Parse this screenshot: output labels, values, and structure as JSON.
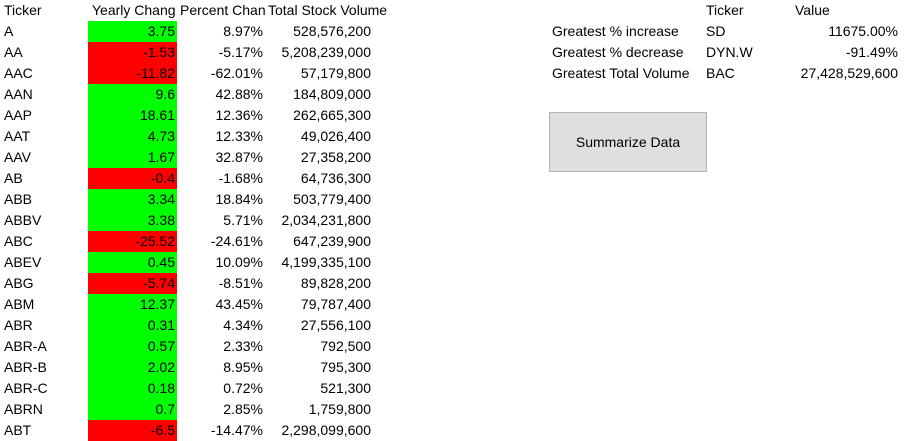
{
  "table": {
    "headers": {
      "ticker": "Ticker",
      "yearly_change": "Yearly Chang",
      "percent_change": "Percent Chan",
      "total_volume": "Total Stock Volume"
    },
    "rows": [
      {
        "ticker": "A",
        "yearly_change": "3.75",
        "percent_change": "8.97%",
        "total_volume": "528,576,200",
        "status": "positive"
      },
      {
        "ticker": "AA",
        "yearly_change": "-1.53",
        "percent_change": "-5.17%",
        "total_volume": "5,208,239,000",
        "status": "negative"
      },
      {
        "ticker": "AAC",
        "yearly_change": "-11.82",
        "percent_change": "-62.01%",
        "total_volume": "57,179,800",
        "status": "negative"
      },
      {
        "ticker": "AAN",
        "yearly_change": "9.6",
        "percent_change": "42.88%",
        "total_volume": "184,809,000",
        "status": "positive"
      },
      {
        "ticker": "AAP",
        "yearly_change": "18.61",
        "percent_change": "12.36%",
        "total_volume": "262,665,300",
        "status": "positive"
      },
      {
        "ticker": "AAT",
        "yearly_change": "4.73",
        "percent_change": "12.33%",
        "total_volume": "49,026,400",
        "status": "positive"
      },
      {
        "ticker": "AAV",
        "yearly_change": "1.67",
        "percent_change": "32.87%",
        "total_volume": "27,358,200",
        "status": "positive"
      },
      {
        "ticker": "AB",
        "yearly_change": "-0.4",
        "percent_change": "-1.68%",
        "total_volume": "64,736,300",
        "status": "negative"
      },
      {
        "ticker": "ABB",
        "yearly_change": "3.34",
        "percent_change": "18.84%",
        "total_volume": "503,779,400",
        "status": "positive"
      },
      {
        "ticker": "ABBV",
        "yearly_change": "3.38",
        "percent_change": "5.71%",
        "total_volume": "2,034,231,800",
        "status": "positive"
      },
      {
        "ticker": "ABC",
        "yearly_change": "-25.52",
        "percent_change": "-24.61%",
        "total_volume": "647,239,900",
        "status": "negative"
      },
      {
        "ticker": "ABEV",
        "yearly_change": "0.45",
        "percent_change": "10.09%",
        "total_volume": "4,199,335,100",
        "status": "positive"
      },
      {
        "ticker": "ABG",
        "yearly_change": "-5.74",
        "percent_change": "-8.51%",
        "total_volume": "89,828,200",
        "status": "negative"
      },
      {
        "ticker": "ABM",
        "yearly_change": "12.37",
        "percent_change": "43.45%",
        "total_volume": "79,787,400",
        "status": "positive"
      },
      {
        "ticker": "ABR",
        "yearly_change": "0.31",
        "percent_change": "4.34%",
        "total_volume": "27,556,100",
        "status": "positive"
      },
      {
        "ticker": "ABR-A",
        "yearly_change": "0.57",
        "percent_change": "2.33%",
        "total_volume": "792,500",
        "status": "positive"
      },
      {
        "ticker": "ABR-B",
        "yearly_change": "2.02",
        "percent_change": "8.95%",
        "total_volume": "795,300",
        "status": "positive"
      },
      {
        "ticker": "ABR-C",
        "yearly_change": "0.18",
        "percent_change": "0.72%",
        "total_volume": "521,300",
        "status": "positive"
      },
      {
        "ticker": "ABRN",
        "yearly_change": "0.7",
        "percent_change": "2.85%",
        "total_volume": "1,759,800",
        "status": "positive"
      },
      {
        "ticker": "ABT",
        "yearly_change": "-6.5",
        "percent_change": "-14.47%",
        "total_volume": "2,298,099,600",
        "status": "negative"
      }
    ]
  },
  "summary": {
    "headers": {
      "ticker": "Ticker",
      "value": "Value"
    },
    "rows": [
      {
        "label": "Greatest % increase",
        "ticker": "SD",
        "value": "11675.00%"
      },
      {
        "label": "Greatest % decrease",
        "ticker": "DYN.W",
        "value": "-91.49%"
      },
      {
        "label": "Greatest Total Volume",
        "ticker": "BAC",
        "value": "27,428,529,600"
      }
    ]
  },
  "button": {
    "label": "Summarize Data"
  },
  "colors": {
    "positive": "#00ff00",
    "negative": "#ff0000"
  }
}
